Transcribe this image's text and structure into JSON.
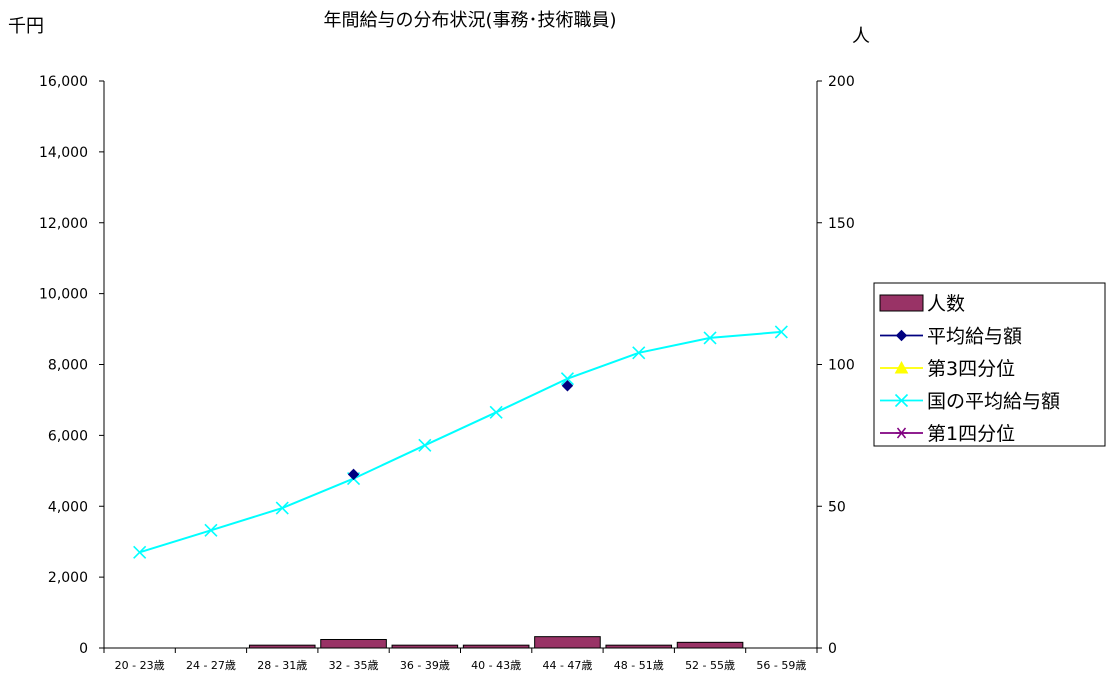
{
  "chart_data": {
    "type": "bar+line",
    "title": "年間給与の分布状況(事務･技術職員)",
    "left_unit": "千円",
    "right_unit": "人",
    "categories": [
      "20 - 23歳",
      "24 - 27歳",
      "28 - 31歳",
      "32 - 35歳",
      "36 - 39歳",
      "40 - 43歳",
      "44 - 47歳",
      "48 - 51歳",
      "52 - 55歳",
      "56 - 59歳"
    ],
    "left_axis": {
      "min": 0,
      "max": 16000,
      "step": 2000,
      "tick_labels": [
        "0",
        "2,000",
        "4,000",
        "6,000",
        "8,000",
        "10,000",
        "12,000",
        "14,000",
        "16,000"
      ]
    },
    "right_axis": {
      "min": 0,
      "max": 200,
      "step": 50,
      "tick_labels": [
        "0",
        "50",
        "100",
        "150",
        "200"
      ]
    },
    "grid": false,
    "legend_position": "right",
    "series": [
      {
        "name": "人数",
        "kind": "bar",
        "axis": "right",
        "color": "#993366",
        "values": [
          0,
          0,
          1,
          3,
          1,
          1,
          4,
          1,
          2,
          0
        ]
      },
      {
        "name": "平均給与額",
        "kind": "marker",
        "marker": "diamond",
        "axis": "left",
        "color": "#000080",
        "values": [
          null,
          null,
          null,
          4900,
          null,
          null,
          7400,
          null,
          null,
          null
        ]
      },
      {
        "name": "第3四分位",
        "kind": "marker",
        "marker": "triangle",
        "axis": "left",
        "color": "#ffff00",
        "values": [
          null,
          null,
          null,
          null,
          null,
          null,
          null,
          null,
          null,
          null
        ]
      },
      {
        "name": "国の平均給与額",
        "kind": "line",
        "marker": "x",
        "axis": "left",
        "color": "#00ffff",
        "values": [
          2700,
          3320,
          3950,
          4780,
          5720,
          6650,
          7600,
          8330,
          8750,
          8920
        ]
      },
      {
        "name": "第1四分位",
        "kind": "marker",
        "marker": "star",
        "axis": "left",
        "color": "#800080",
        "values": [
          null,
          null,
          null,
          null,
          null,
          null,
          null,
          null,
          null,
          null
        ]
      }
    ]
  }
}
